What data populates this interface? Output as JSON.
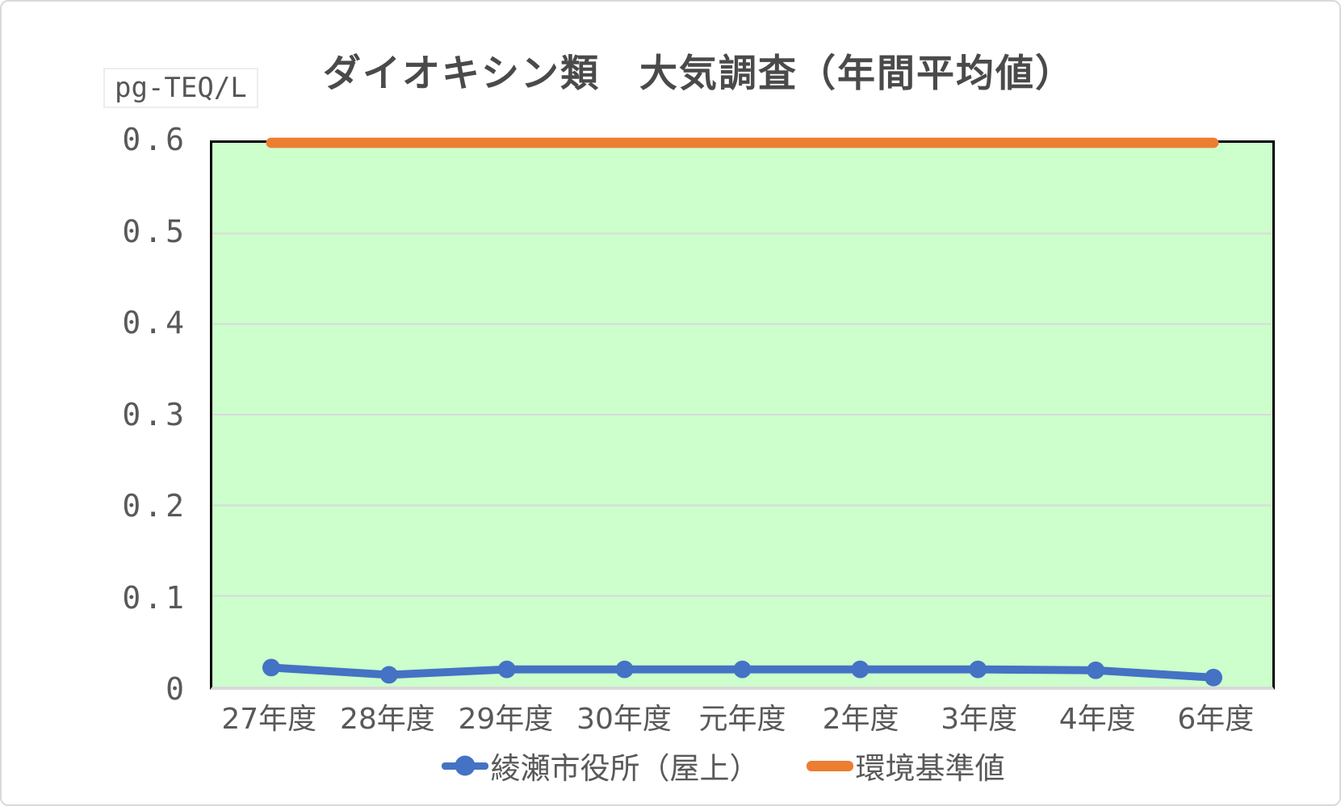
{
  "window": {
    "background": "#ffffff",
    "frame_border_color": "#d9d9d9"
  },
  "chart_data": {
    "type": "line",
    "title": "ダイオキシン類　大気調査（年間平均値）",
    "unit_label": "pg-TEQ/L",
    "categories": [
      "27年度",
      "28年度",
      "29年度",
      "30年度",
      "元年度",
      "2年度",
      "3年度",
      "4年度",
      "6年度"
    ],
    "series": [
      {
        "name": "綾瀬市役所（屋上）",
        "color": "#4472C4",
        "marker": "circle",
        "marker_radius": 11,
        "line_width": 10,
        "values": [
          0.021,
          0.013,
          0.019,
          0.019,
          0.019,
          0.019,
          0.019,
          0.018,
          0.01
        ]
      },
      {
        "name": "環境基準値",
        "color": "#ED7D31",
        "marker": "none",
        "marker_radius": 0,
        "line_width": 13,
        "values": [
          0.6,
          0.6,
          0.6,
          0.6,
          0.6,
          0.6,
          0.6,
          0.6,
          0.6
        ]
      }
    ],
    "ylim": [
      0,
      0.6
    ],
    "y_ticks": [
      "0.6",
      "0.5",
      "0.4",
      "0.3",
      "0.2",
      "0.1",
      "0"
    ],
    "grid": true,
    "grid_color": "#d9d9d9",
    "plot_bg": "#ccffcc",
    "plot_border_color": "#000000",
    "axis_line_color": "#d9d9d9",
    "text_color": "#595959",
    "legend_position": "bottom"
  }
}
